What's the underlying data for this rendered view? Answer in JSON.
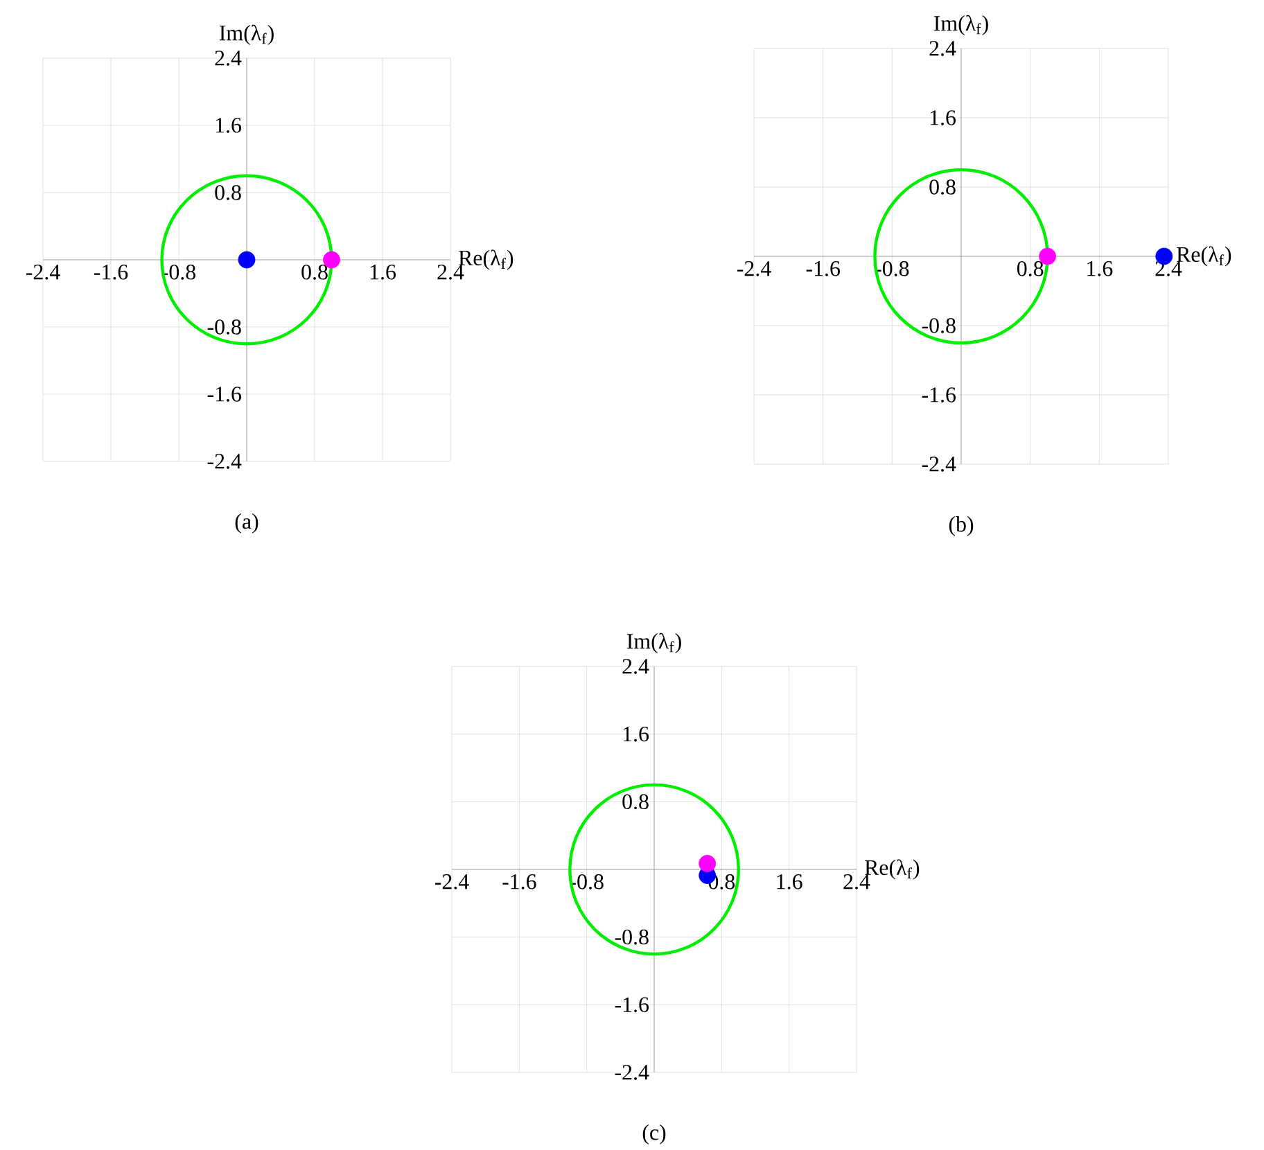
{
  "chart_data": [
    {
      "type": "scatter",
      "marker": "circle",
      "xlabel": "Re(λ$_{f}$)",
      "ylabel": "Im(λ$_{f}$)",
      "annotations": [
        "(a)"
      ],
      "grid": true,
      "xlim": [
        -2.4,
        2.4
      ],
      "ylim": [
        -2.4,
        2.4
      ],
      "xticks": [
        -2.4,
        -1.6,
        -0.8,
        0.8,
        1.6,
        2.4
      ],
      "yticks": [
        -2.4,
        -1.6,
        -0.8,
        0.8,
        1.6,
        2.4
      ],
      "series": [
        {
          "color": "#0000ff",
          "x": [
            0
          ],
          "values": [
            0
          ]
        },
        {
          "color": "#ff00ff",
          "x": [
            1
          ],
          "values": [
            0
          ]
        }
      ]
    },
    {
      "type": "scatter",
      "marker": "circle",
      "xlabel": "Re(λ$_{f}$)",
      "ylabel": "Im(λ$_{f}$)",
      "annotations": [
        "(b)"
      ],
      "grid": true,
      "xlim": [
        -2.4,
        2.4
      ],
      "ylim": [
        -2.4,
        2.4
      ],
      "xticks": [
        -2.4,
        -1.6,
        -0.8,
        0.8,
        1.6,
        2.4
      ],
      "yticks": [
        -2.4,
        -1.6,
        -0.8,
        0.8,
        1.6,
        2.4
      ],
      "series": [
        {
          "color": "#0000ff",
          "x": [
            2.35
          ],
          "values": [
            0
          ]
        },
        {
          "color": "#ff00ff",
          "x": [
            1
          ],
          "values": [
            0
          ]
        }
      ]
    },
    {
      "type": "scatter",
      "marker": "circle",
      "xlabel": "Re(λ$_{f}$)",
      "ylabel": "Im(λ$_{f}$)",
      "annotations": [
        "(c)"
      ],
      "grid": true,
      "xlim": [
        -2.4,
        2.4
      ],
      "ylim": [
        -2.4,
        2.4
      ],
      "xticks": [
        -2.4,
        -1.6,
        -0.8,
        0.8,
        1.6,
        2.4
      ],
      "yticks": [
        -2.4,
        -1.6,
        -0.8,
        0.8,
        1.6,
        2.4
      ],
      "series": [
        {
          "color": "#0000ff",
          "x": [
            0.63
          ],
          "values": [
            -0.07
          ]
        },
        {
          "color": "#ff00ff",
          "x": [
            0.63
          ],
          "values": [
            0.07
          ]
        }
      ]
    }
  ]
}
